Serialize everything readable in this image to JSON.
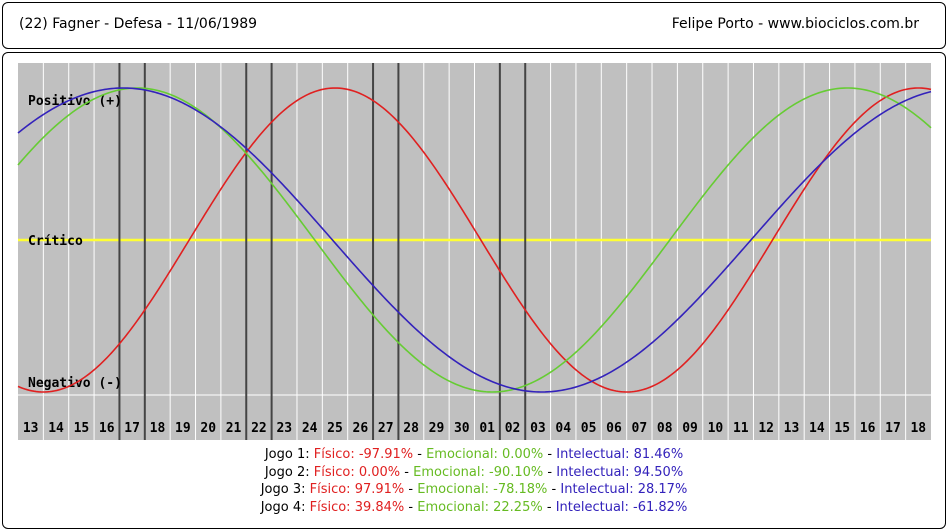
{
  "header": {
    "left": "(22)  Fagner - Defesa -  11/06/1989",
    "right": "Felipe Porto   -   www.biociclos.com.br"
  },
  "chart_data": {
    "type": "line",
    "title": "",
    "labels": {
      "positive": "Positivo (+)",
      "critical": "Crítico",
      "negative": "Negativo (-)"
    },
    "x_ticks": [
      "13",
      "14",
      "15",
      "16",
      "17",
      "18",
      "19",
      "20",
      "21",
      "22",
      "23",
      "24",
      "25",
      "26",
      "27",
      "28",
      "29",
      "30",
      "01",
      "02",
      "03",
      "04",
      "05",
      "06",
      "07",
      "08",
      "09",
      "10",
      "11",
      "12",
      "13",
      "14",
      "15",
      "16",
      "17",
      "18"
    ],
    "ylim": [
      -100,
      100
    ],
    "grid": true,
    "series": [
      {
        "name": "Físico",
        "color": "#e02020",
        "period": 23,
        "first_day_phase": 16.75
      },
      {
        "name": "Emocional",
        "color": "#66cc33",
        "period": 28,
        "first_day_phase": 2.8
      },
      {
        "name": "Intelectual",
        "color": "#3322bb",
        "period": 33,
        "first_day_phase": 4.6
      }
    ],
    "game_markers_at_tick_index": [
      4,
      5,
      9,
      10,
      14,
      15,
      19,
      20
    ],
    "colors": {
      "background": "#c0c0c0",
      "grid": "#ffffff",
      "critical_line": "#ffff33",
      "marker": "#444444"
    }
  },
  "readings": [
    {
      "label": "Jogo 1:",
      "fisico": "Físico: -97.91%",
      "emocional": "Emocional: 0.00%",
      "intelectual": "Intelectual: 81.46%"
    },
    {
      "label": "Jogo 2:",
      "fisico": "Físico: 0.00%",
      "emocional": "Emocional: -90.10%",
      "intelectual": "Intelectual: 94.50%"
    },
    {
      "label": "Jogo 3:",
      "fisico": "Físico: 97.91%",
      "emocional": "Emocional: -78.18%",
      "intelectual": "Intelectual: 28.17%"
    },
    {
      "label": "Jogo 4:",
      "fisico": "Físico: 39.84%",
      "emocional": "Emocional: 22.25%",
      "intelectual": "Intelectual: -61.82%"
    }
  ],
  "separator": "-"
}
